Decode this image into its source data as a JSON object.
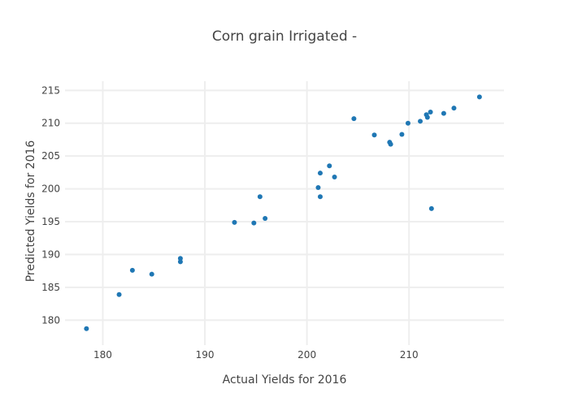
{
  "chart_data": {
    "type": "scatter",
    "title": "Corn grain Irrigated -",
    "xlabel": "Actual Yields for 2016",
    "ylabel": "Predicted Yields for 2016",
    "xlim": [
      176.3,
      219.3
    ],
    "ylim": [
      176.2,
      216.4
    ],
    "xticks": [
      180,
      190,
      200,
      210
    ],
    "yticks": [
      180,
      185,
      190,
      195,
      200,
      205,
      210,
      215
    ],
    "grid": true,
    "legend": "none",
    "marker_color": "#1f77b4",
    "series": [
      {
        "x": [
          178.4,
          181.6,
          182.9,
          184.8,
          187.6,
          187.6,
          192.9,
          194.8,
          195.4,
          195.9,
          201.1,
          201.3,
          201.3,
          202.2,
          202.7,
          204.6,
          206.6,
          208.1,
          208.2,
          209.3,
          209.9,
          211.1,
          211.7,
          211.8,
          212.1,
          212.2,
          213.4,
          214.4,
          216.9
        ],
        "y": [
          178.7,
          183.9,
          187.6,
          187.0,
          189.4,
          188.9,
          194.9,
          194.8,
          198.8,
          195.5,
          200.2,
          198.8,
          202.4,
          203.5,
          201.8,
          210.7,
          208.2,
          207.1,
          206.8,
          208.3,
          210.0,
          210.3,
          211.3,
          210.9,
          211.7,
          197.0,
          211.5,
          212.3,
          214.0
        ]
      }
    ]
  }
}
